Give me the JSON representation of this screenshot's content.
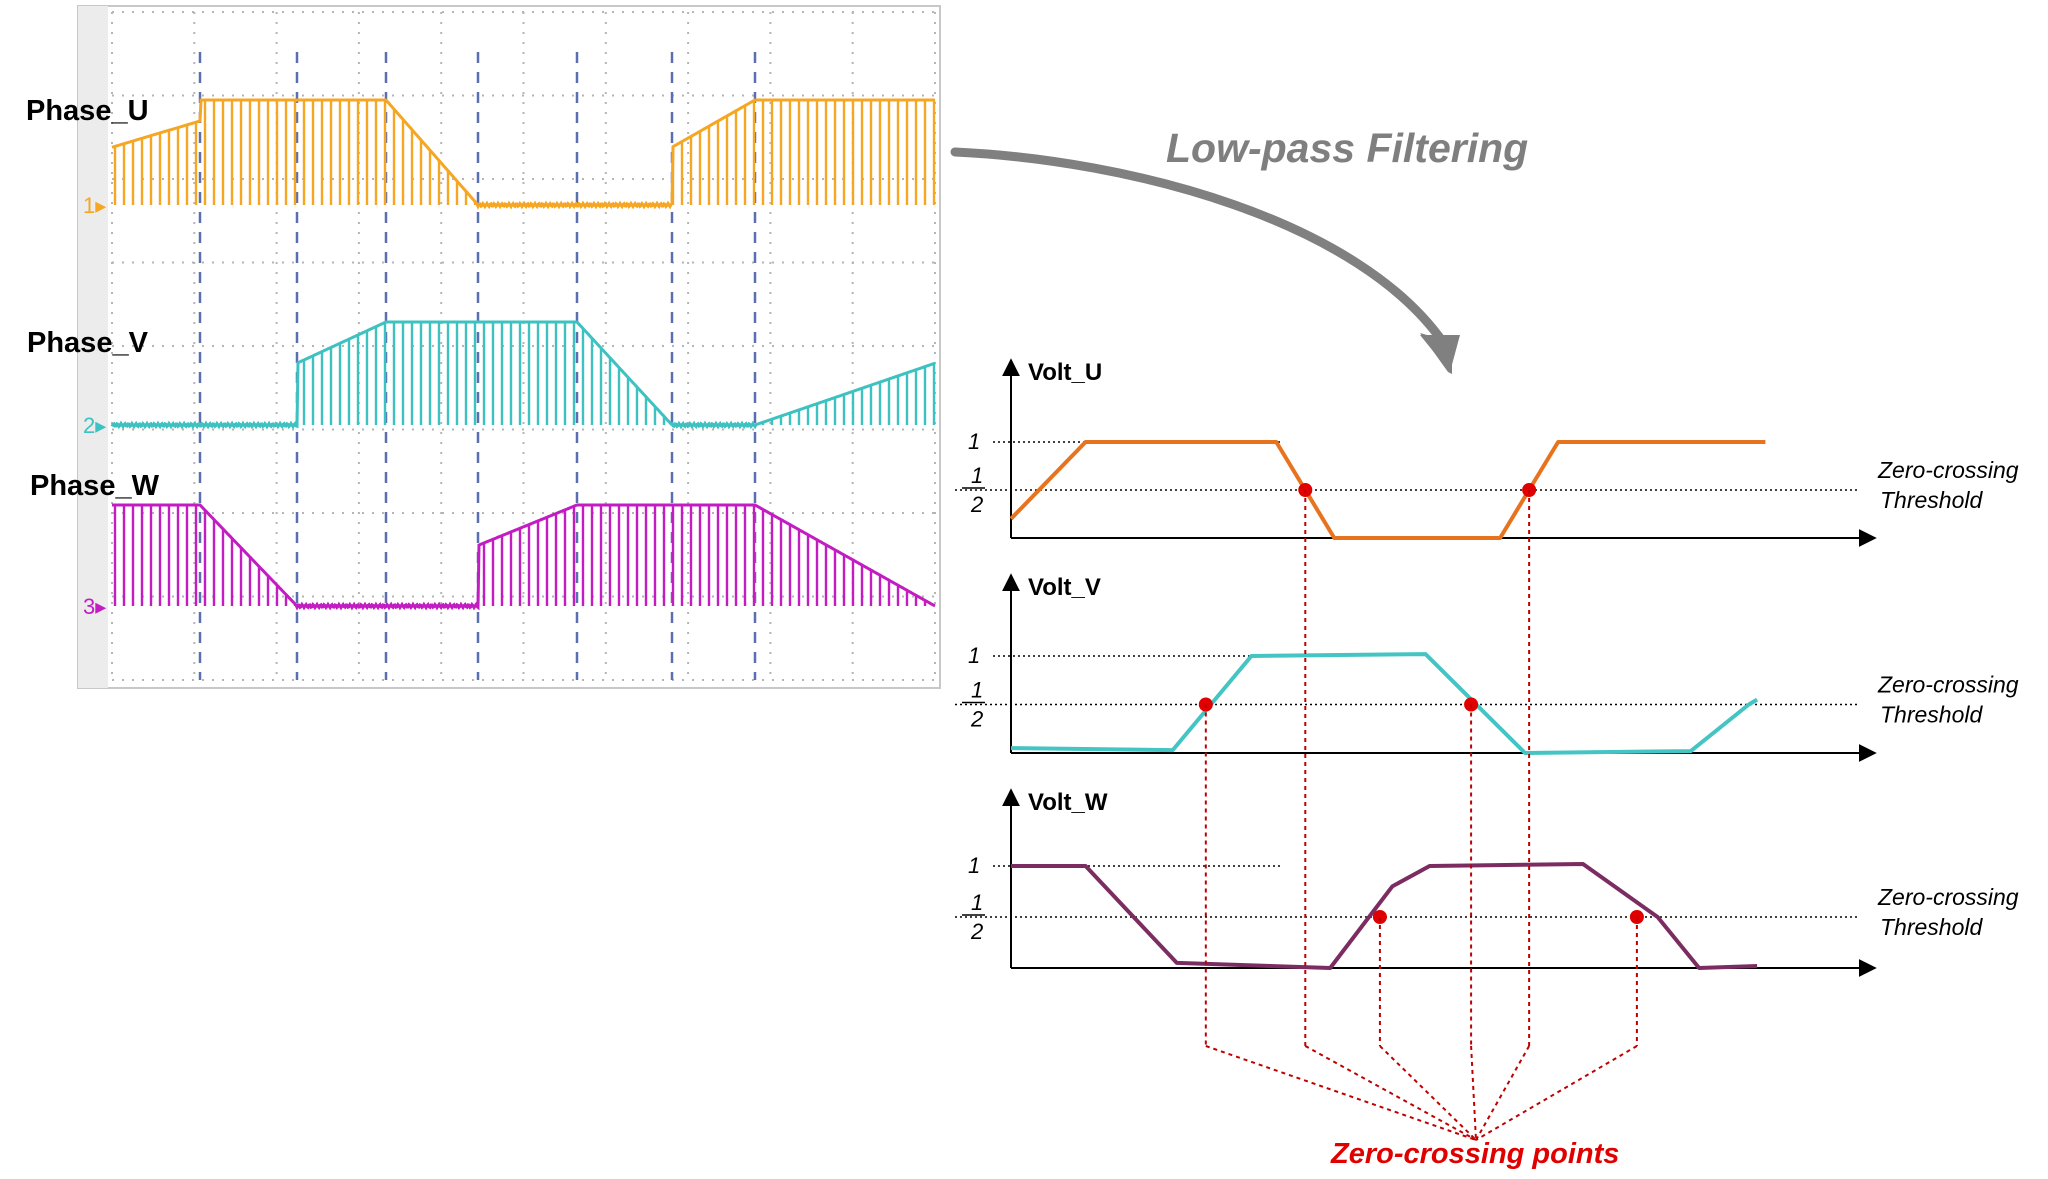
{
  "scope": {
    "channels": [
      {
        "label": "Phase_U",
        "marker": "1",
        "color": "#f5a623"
      },
      {
        "label": "Phase_V",
        "marker": "2",
        "color": "#3ec1c1"
      },
      {
        "label": "Phase_W",
        "marker": "3",
        "color": "#c21cc2"
      }
    ]
  },
  "arrow_label": "Low-pass Filtering",
  "filtered": {
    "plots": [
      {
        "title": "Volt_U",
        "color": "#e8731e",
        "waveform": [
          [
            0,
            0.2
          ],
          [
            0.09,
            1
          ],
          [
            0.32,
            1
          ],
          [
            0.39,
            0
          ],
          [
            0.59,
            0
          ],
          [
            0.66,
            1
          ],
          [
            0.91,
            1
          ]
        ],
        "zero_crossings": [
          0.355,
          0.625
        ]
      },
      {
        "title": "Volt_V",
        "color": "#45c4c4",
        "waveform": [
          [
            0,
            0.05
          ],
          [
            0.195,
            0.03
          ],
          [
            0.29,
            1
          ],
          [
            0.5,
            1.02
          ],
          [
            0.62,
            0
          ],
          [
            0.82,
            0.02
          ],
          [
            0.89,
            0.5
          ],
          [
            0.9,
            0.55
          ]
        ],
        "zero_crossings": [
          0.235,
          0.555
        ]
      },
      {
        "title": "Volt_W",
        "color": "#7b2d62",
        "waveform": [
          [
            0,
            1
          ],
          [
            0.09,
            1
          ],
          [
            0.2,
            0.05
          ],
          [
            0.385,
            0
          ],
          [
            0.46,
            0.8
          ],
          [
            0.505,
            1
          ],
          [
            0.69,
            1.02
          ],
          [
            0.78,
            0.5
          ],
          [
            0.83,
            0
          ],
          [
            0.9,
            0.02
          ]
        ],
        "zero_crossings": [
          0.445,
          0.755
        ]
      }
    ],
    "tick_one": "1",
    "tick_half_num": "1",
    "tick_half_den": "2",
    "threshold_line1": "Zero-crossing",
    "threshold_line2": "Threshold"
  },
  "zero_crossing_points_label": "Zero-crossing points",
  "colors": {
    "marker": "#e00000",
    "guide": "#c00000",
    "grid": "#5a6fb0"
  }
}
